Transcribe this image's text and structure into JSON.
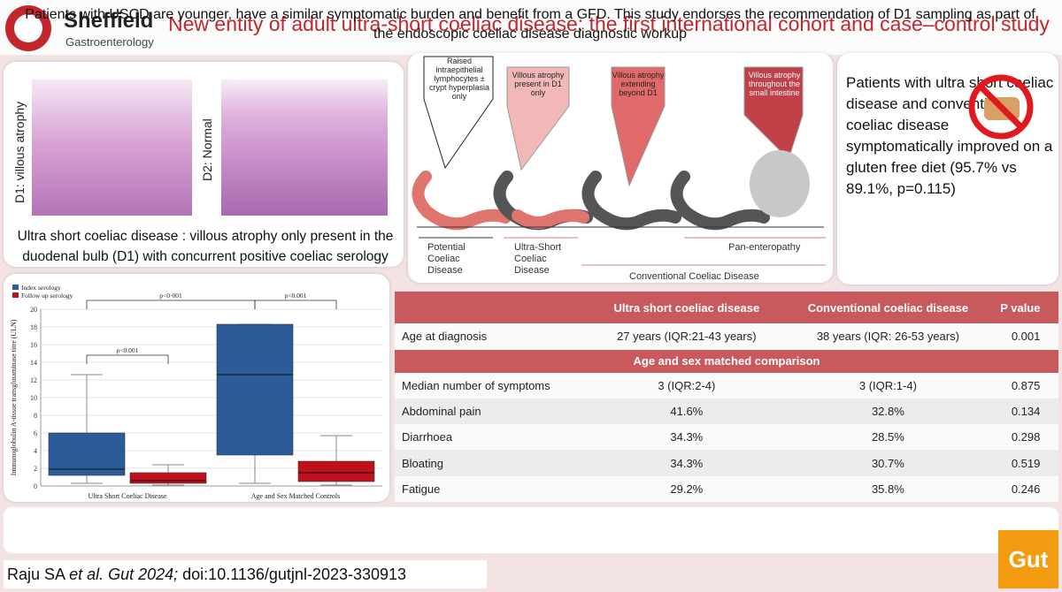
{
  "header": {
    "brand": "Sheffield",
    "brand_sub": "Gastroenterology",
    "title": "New entity of adult ultra-short coeliac disease: the first international cohort and case–control study"
  },
  "histology": {
    "left_label": "D1: villous atrophy",
    "right_label": "D2: Normal",
    "caption": "Ultra short coeliac disease : villous atrophy only present in the duodenal bulb (D1) with concurrent positive coeliac serology"
  },
  "spectrum": {
    "callouts": [
      "Raised intraepithelial lymphocytes ± crypt hyperplasia only",
      "Villous atrophy present in D1 only",
      "Villous atrophy extending beyond D1",
      "Villous atrophy throughout the small intestine"
    ],
    "labels": {
      "potential": "Potential Coeliac Disease",
      "ultra_short": "Ultra-Short Coeliac Disease",
      "pan": "Pan-enteropathy",
      "conventional": "Conventional Coeliac Disease"
    }
  },
  "summary": {
    "text": "Patients with ultra short coeliac disease and conventional coeliac disease symptomatically improved on a gluten free diet (95.7% vs 89.1%, p=0.115)",
    "icon": "no-bread-icon"
  },
  "chart_data": {
    "type": "box",
    "ylabel": "Immunoglobulin A-tissue transglutaminase titre (ULN)",
    "ylim": [
      0,
      20
    ],
    "yticks": [
      0,
      2,
      4,
      6,
      8,
      10,
      12,
      14,
      16,
      18,
      20
    ],
    "categories": [
      "Ultra Short Coeliac Disease",
      "Age and Sex Matched Controls"
    ],
    "series": [
      {
        "name": "Index serology",
        "color": "#2c5b9a",
        "boxes": [
          {
            "min": 0.3,
            "q1": 1.2,
            "median": 1.9,
            "q3": 6.0,
            "max": 12.6
          },
          {
            "min": 0.3,
            "q1": 3.5,
            "median": 12.6,
            "q3": 18.3,
            "max": 18.3
          }
        ]
      },
      {
        "name": "Follow up serology",
        "color": "#c0101b",
        "boxes": [
          {
            "min": 0.1,
            "q1": 0.3,
            "median": 0.6,
            "q3": 1.5,
            "max": 2.4
          },
          {
            "min": 0.1,
            "q1": 0.5,
            "median": 1.5,
            "q3": 2.8,
            "max": 5.7
          }
        ]
      }
    ],
    "annotations": [
      "p<0·001",
      "p<0.001",
      "p<0.001"
    ]
  },
  "table": {
    "headers": [
      "",
      "Ultra short coeliac disease",
      "Conventional coeliac disease",
      "P value"
    ],
    "row_age": [
      "Age at diagnosis",
      "27 years (IQR:21-43 years)",
      "38 years (IQR: 26-53 years)",
      "0.001"
    ],
    "subheader": "Age and sex matched comparison",
    "rows": [
      [
        "Median number of symptoms",
        "3 (IQR:2-4)",
        "3 (IQR:1-4)",
        "0.875"
      ],
      [
        "Abdominal pain",
        "41.6%",
        "32.8%",
        "0.134"
      ],
      [
        "Diarrhoea",
        "34.3%",
        "28.5%",
        "0.298"
      ],
      [
        "Bloating",
        "34.3%",
        "30.7%",
        "0.519"
      ],
      [
        "Fatigue",
        "29.2%",
        "35.8%",
        "0.246"
      ]
    ]
  },
  "conclusion": "Patients with USCD are younger, have a similar symptomatic burden and benefit from a GFD. This study endorses the recommendation of D1 sampling as part of the endoscopic coeliac disease diagnostic workup",
  "citation": {
    "author": "Raju SA",
    "etal": "et al. Gut 2024;",
    "doi": " doi:10.1136/gutjnl-2023-330913"
  },
  "journal_badge": "Gut"
}
